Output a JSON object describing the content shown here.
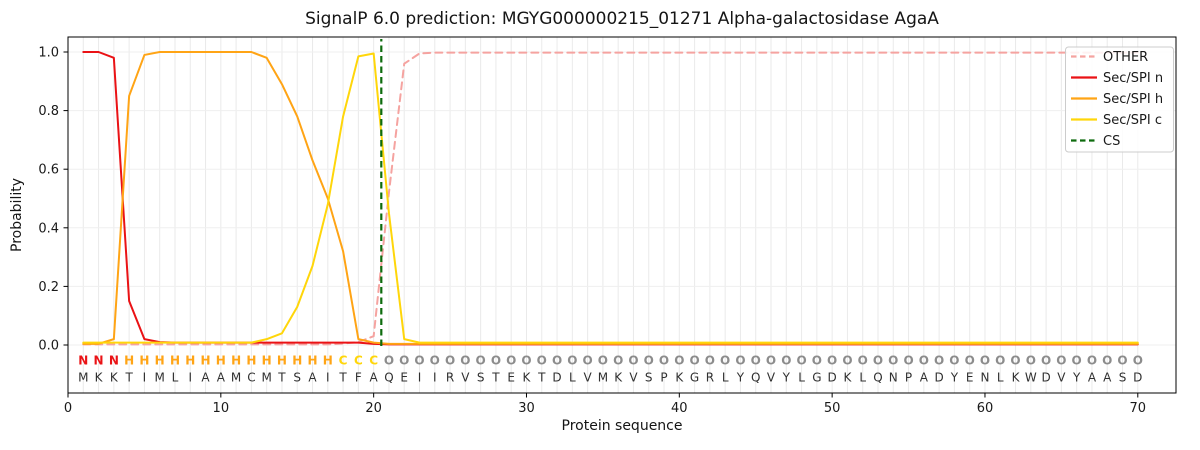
{
  "chart_data": {
    "type": "line",
    "title": "SignalP 6.0 prediction: MGYG000000215_01271 Alpha-galactosidase AgaA",
    "xlabel": "Protein sequence",
    "ylabel": "Probability",
    "xlim": [
      0,
      72.5
    ],
    "ylim": [
      -0.16,
      1.05
    ],
    "xticks": [
      0,
      10,
      20,
      30,
      40,
      50,
      60,
      70
    ],
    "yticks": [
      0.0,
      0.2,
      0.4,
      0.6,
      0.8,
      1.0
    ],
    "grid": true,
    "legend_position": "upper right",
    "x_start": 1,
    "series": [
      {
        "name": "OTHER",
        "color": "#f5a3a0",
        "dash": true,
        "values": [
          0.002,
          0.002,
          0.002,
          0.002,
          0.002,
          0.002,
          0.002,
          0.002,
          0.002,
          0.002,
          0.002,
          0.002,
          0.002,
          0.002,
          0.002,
          0.002,
          0.002,
          0.005,
          0.01,
          0.03,
          0.52,
          0.96,
          0.995,
          0.998,
          0.998,
          0.998,
          0.998,
          0.998,
          0.998,
          0.998,
          0.998,
          0.998,
          0.998,
          0.998,
          0.998,
          0.998,
          0.998,
          0.998,
          0.998,
          0.998,
          0.998,
          0.998,
          0.998,
          0.998,
          0.998,
          0.998,
          0.998,
          0.998,
          0.998,
          0.998,
          0.998,
          0.998,
          0.998,
          0.998,
          0.998,
          0.998,
          0.998,
          0.998,
          0.998,
          0.998,
          0.998,
          0.998,
          0.998,
          0.998,
          0.998,
          0.998,
          0.998,
          0.998,
          0.998,
          0.998
        ]
      },
      {
        "name": "Sec/SPI n",
        "color": "#ea1215",
        "dash": false,
        "values": [
          1.0,
          1.0,
          0.98,
          0.15,
          0.02,
          0.01,
          0.008,
          0.008,
          0.008,
          0.008,
          0.008,
          0.008,
          0.008,
          0.008,
          0.008,
          0.008,
          0.008,
          0.008,
          0.008,
          0.004,
          0.002,
          0.002,
          0.002,
          0.002,
          0.002,
          0.002,
          0.002,
          0.002,
          0.002,
          0.002,
          0.002,
          0.002,
          0.002,
          0.002,
          0.002,
          0.002,
          0.002,
          0.002,
          0.002,
          0.002,
          0.002,
          0.002,
          0.002,
          0.002,
          0.002,
          0.002,
          0.002,
          0.002,
          0.002,
          0.002,
          0.002,
          0.002,
          0.002,
          0.002,
          0.002,
          0.002,
          0.002,
          0.002,
          0.002,
          0.002,
          0.002,
          0.002,
          0.002,
          0.002,
          0.002,
          0.002,
          0.002,
          0.002,
          0.002,
          0.002
        ]
      },
      {
        "name": "Sec/SPI h",
        "color": "#ffa415",
        "dash": false,
        "values": [
          0.004,
          0.004,
          0.02,
          0.85,
          0.99,
          1.0,
          1.0,
          1.0,
          1.0,
          1.0,
          1.0,
          1.0,
          0.98,
          0.89,
          0.78,
          0.63,
          0.5,
          0.32,
          0.02,
          0.008,
          0.004,
          0.004,
          0.004,
          0.004,
          0.004,
          0.004,
          0.004,
          0.004,
          0.004,
          0.004,
          0.004,
          0.004,
          0.004,
          0.004,
          0.004,
          0.004,
          0.004,
          0.004,
          0.004,
          0.004,
          0.004,
          0.004,
          0.004,
          0.004,
          0.004,
          0.004,
          0.004,
          0.004,
          0.004,
          0.004,
          0.004,
          0.004,
          0.004,
          0.004,
          0.004,
          0.004,
          0.004,
          0.004,
          0.004,
          0.004,
          0.004,
          0.004,
          0.004,
          0.004,
          0.004,
          0.004,
          0.004,
          0.004,
          0.004,
          0.004
        ]
      },
      {
        "name": "Sec/SPI c",
        "color": "#ffd60a",
        "dash": false,
        "values": [
          0.008,
          0.008,
          0.008,
          0.008,
          0.008,
          0.008,
          0.008,
          0.008,
          0.008,
          0.008,
          0.008,
          0.008,
          0.02,
          0.04,
          0.13,
          0.27,
          0.48,
          0.78,
          0.985,
          0.995,
          0.45,
          0.02,
          0.008,
          0.008,
          0.008,
          0.008,
          0.008,
          0.008,
          0.008,
          0.008,
          0.008,
          0.008,
          0.008,
          0.008,
          0.008,
          0.008,
          0.008,
          0.008,
          0.008,
          0.008,
          0.008,
          0.008,
          0.008,
          0.008,
          0.008,
          0.008,
          0.008,
          0.008,
          0.008,
          0.008,
          0.008,
          0.008,
          0.008,
          0.008,
          0.008,
          0.008,
          0.008,
          0.008,
          0.008,
          0.008,
          0.008,
          0.008,
          0.008,
          0.008,
          0.008,
          0.008,
          0.008,
          0.008,
          0.008,
          0.008
        ]
      }
    ],
    "cs_marker": {
      "name": "CS",
      "x": 20.5,
      "color": "#0d6b0d",
      "dash": true
    },
    "sequence": "MKKTIMLIAAMCMTSAITFAQEIIRVSTEKTDLVMKVSPKGRLYQVYLGDKLQNPADYENLKWDVYAASD",
    "residue_labels": "NNNHHHHHHHHHHHHHHCCCOOOOOOOOOOOOOOOOOOOOOOOOOOOOOOOOOOOOOOOOOOOOOOOOOO",
    "residue_label_colors": {
      "N": "#ea1215",
      "H": "#ffa415",
      "C": "#ffd60a",
      "O": "#8c8c8c"
    },
    "sequence_color": "#303030"
  }
}
